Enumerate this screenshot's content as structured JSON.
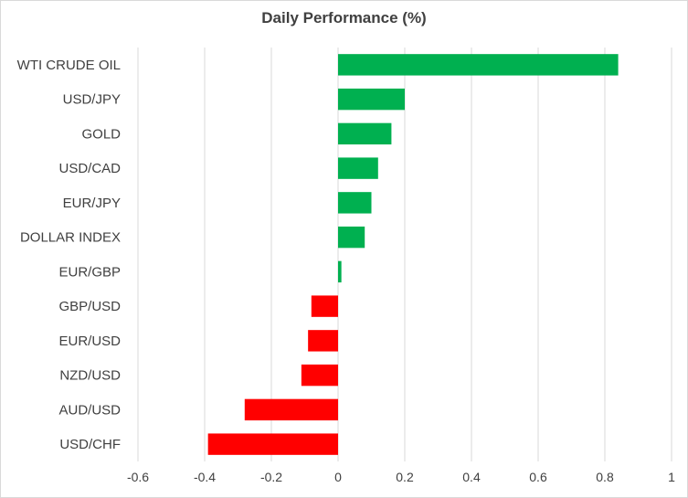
{
  "chart_data": {
    "type": "bar",
    "orientation": "horizontal",
    "title": "Daily Performance  (%)",
    "categories": [
      "WTI CRUDE OIL",
      "USD/JPY",
      "GOLD",
      "USD/CAD",
      "EUR/JPY",
      "DOLLAR INDEX",
      "EUR/GBP",
      "GBP/USD",
      "EUR/USD",
      "NZD/USD",
      "AUD/USD",
      "USD/CHF"
    ],
    "values": [
      0.84,
      0.2,
      0.16,
      0.12,
      0.1,
      0.08,
      0.01,
      -0.08,
      -0.09,
      -0.11,
      -0.28,
      -0.39
    ],
    "xlim": [
      -0.6,
      1
    ],
    "xticks": [
      "-0.6",
      "-0.4",
      "-0.2",
      "0",
      "0.2",
      "0.4",
      "0.6",
      "0.8",
      "1"
    ],
    "xtick_values": [
      -0.6,
      -0.4,
      -0.2,
      0,
      0.2,
      0.4,
      0.6,
      0.8,
      1
    ],
    "grid": "vertical",
    "colors": {
      "positive": "#00b050",
      "negative": "#ff0000",
      "grid": "#d9d9d9",
      "text": "#404040"
    }
  }
}
